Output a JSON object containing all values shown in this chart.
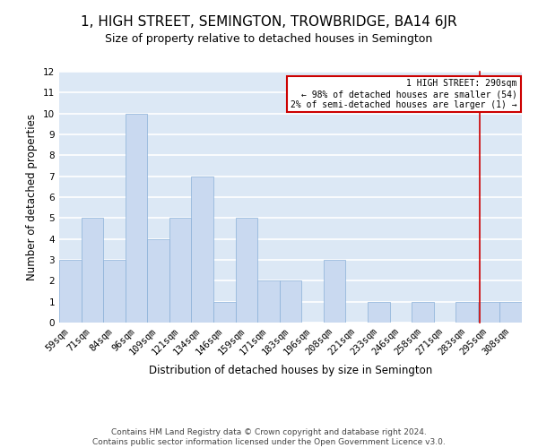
{
  "title": "1, HIGH STREET, SEMINGTON, TROWBRIDGE, BA14 6JR",
  "subtitle": "Size of property relative to detached houses in Semington",
  "xlabel": "Distribution of detached houses by size in Semington",
  "ylabel": "Number of detached properties",
  "bin_labels": [
    "59sqm",
    "71sqm",
    "84sqm",
    "96sqm",
    "109sqm",
    "121sqm",
    "134sqm",
    "146sqm",
    "159sqm",
    "171sqm",
    "183sqm",
    "196sqm",
    "208sqm",
    "221sqm",
    "233sqm",
    "246sqm",
    "258sqm",
    "271sqm",
    "283sqm",
    "295sqm",
    "308sqm"
  ],
  "bar_heights": [
    3,
    5,
    3,
    10,
    4,
    5,
    7,
    1,
    5,
    2,
    2,
    0,
    3,
    0,
    1,
    0,
    1,
    0,
    1,
    1,
    1
  ],
  "bar_color": "#c9d9f0",
  "bar_edge_color": "#8ab0d8",
  "ylim": [
    0,
    12
  ],
  "yticks": [
    0,
    1,
    2,
    3,
    4,
    5,
    6,
    7,
    8,
    9,
    10,
    11,
    12
  ],
  "grid_color": "#ffffff",
  "bg_color": "#dce8f5",
  "property_line_color": "#cc0000",
  "annotation_text": "1 HIGH STREET: 290sqm\n← 98% of detached houses are smaller (54)\n2% of semi-detached houses are larger (1) →",
  "annotation_box_color": "#cc0000",
  "footer_text": "Contains HM Land Registry data © Crown copyright and database right 2024.\nContains public sector information licensed under the Open Government Licence v3.0.",
  "title_fontsize": 11,
  "subtitle_fontsize": 9,
  "label_fontsize": 8.5,
  "tick_fontsize": 7.5,
  "footer_fontsize": 6.5
}
